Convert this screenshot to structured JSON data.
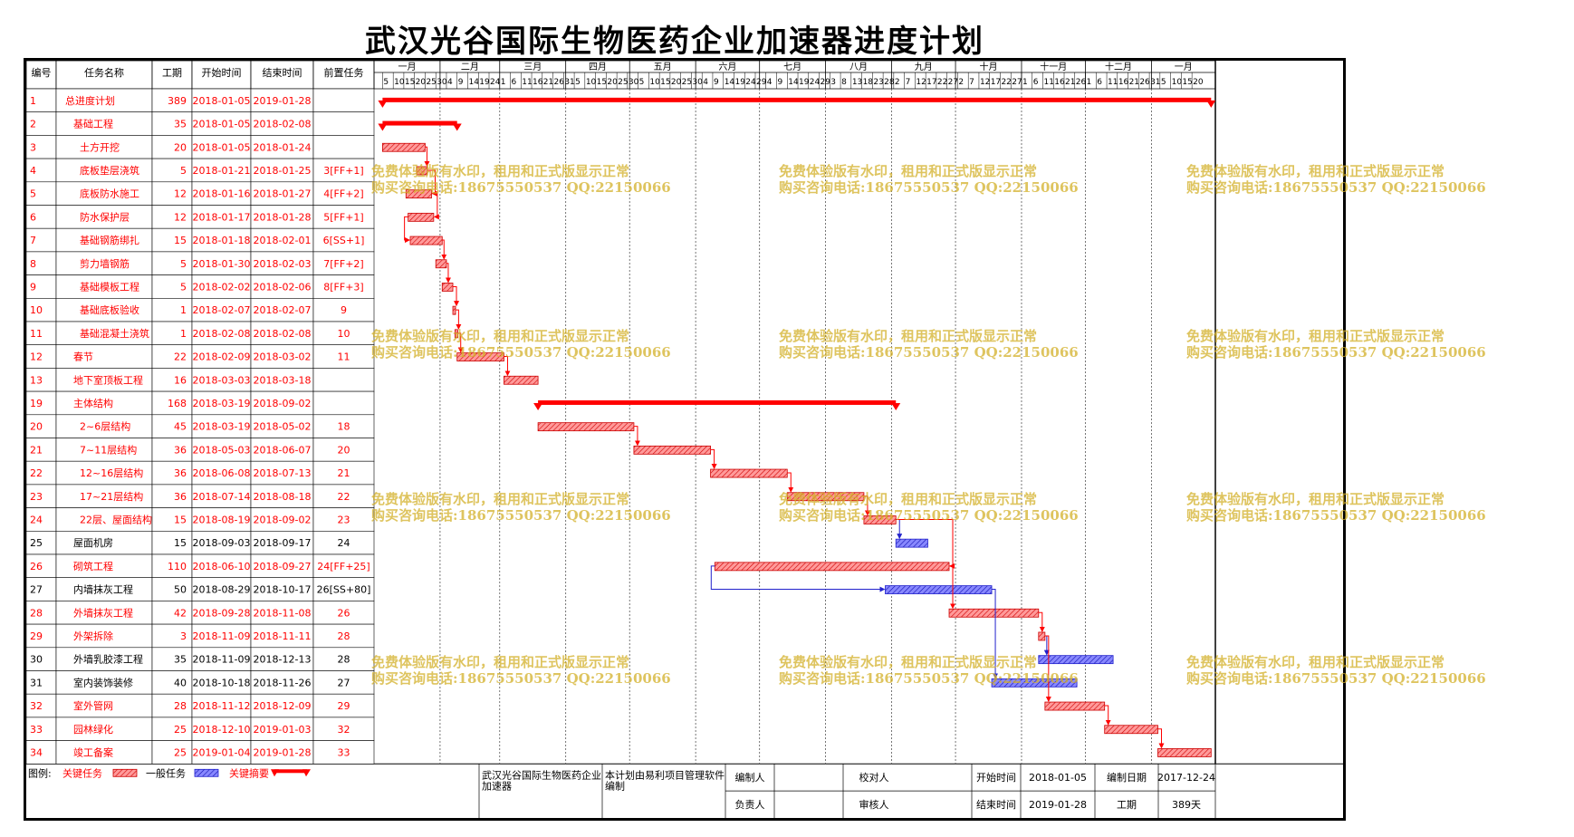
{
  "title": "武汉光谷国际生物医药企业加速器进度计划",
  "headers": [
    "编号",
    "任务名称",
    "工期",
    "开始时间",
    "结束时间",
    "前置任务"
  ],
  "months": [
    "一月",
    "二月",
    "三月",
    "四月",
    "五月",
    "六月",
    "七月",
    "八月",
    "九月",
    "十月",
    "十一月",
    "十二月",
    "一月"
  ],
  "chart_data": {
    "type": "gantt",
    "title": "武汉光谷国际生物医药企业加速器进度计划",
    "date_range": [
      "2018-01-01",
      "2019-01-31"
    ],
    "tasks": [
      {
        "id": "1",
        "name": "总进度计划",
        "duration": "389",
        "start": "2018-01-05",
        "end": "2019-01-28",
        "pred": "",
        "kind": "summary",
        "level": 0
      },
      {
        "id": "2",
        "name": "基础工程",
        "duration": "35",
        "start": "2018-01-05",
        "end": "2018-02-08",
        "pred": "",
        "kind": "summary",
        "level": 1
      },
      {
        "id": "3",
        "name": "土方开挖",
        "duration": "20",
        "start": "2018-01-05",
        "end": "2018-01-24",
        "pred": "",
        "kind": "critical",
        "level": 2
      },
      {
        "id": "4",
        "name": "底板垫层浇筑",
        "duration": "5",
        "start": "2018-01-21",
        "end": "2018-01-25",
        "pred": "3[FF+1]",
        "kind": "critical",
        "level": 2
      },
      {
        "id": "5",
        "name": "底板防水施工",
        "duration": "12",
        "start": "2018-01-16",
        "end": "2018-01-27",
        "pred": "4[FF+2]",
        "kind": "critical",
        "level": 2
      },
      {
        "id": "6",
        "name": "防水保护层",
        "duration": "12",
        "start": "2018-01-17",
        "end": "2018-01-28",
        "pred": "5[FF+1]",
        "kind": "critical",
        "level": 2
      },
      {
        "id": "7",
        "name": "基础钢筋绑扎",
        "duration": "15",
        "start": "2018-01-18",
        "end": "2018-02-01",
        "pred": "6[SS+1]",
        "kind": "critical",
        "level": 2
      },
      {
        "id": "8",
        "name": "剪力墙钢筋",
        "duration": "5",
        "start": "2018-01-30",
        "end": "2018-02-03",
        "pred": "7[FF+2]",
        "kind": "critical",
        "level": 2
      },
      {
        "id": "9",
        "name": "基础模板工程",
        "duration": "5",
        "start": "2018-02-02",
        "end": "2018-02-06",
        "pred": "8[FF+3]",
        "kind": "critical",
        "level": 2
      },
      {
        "id": "10",
        "name": "基础底板验收",
        "duration": "1",
        "start": "2018-02-07",
        "end": "2018-02-07",
        "pred": "9",
        "kind": "critical",
        "level": 2
      },
      {
        "id": "11",
        "name": "基础混凝土浇筑",
        "duration": "1",
        "start": "2018-02-08",
        "end": "2018-02-08",
        "pred": "10",
        "kind": "critical",
        "level": 2
      },
      {
        "id": "12",
        "name": "春节",
        "duration": "22",
        "start": "2018-02-09",
        "end": "2018-03-02",
        "pred": "11",
        "kind": "critical",
        "level": 1
      },
      {
        "id": "13",
        "name": "地下室顶板工程",
        "duration": "16",
        "start": "2018-03-03",
        "end": "2018-03-18",
        "pred": "",
        "kind": "critical",
        "level": 1
      },
      {
        "id": "19",
        "name": "主体结构",
        "duration": "168",
        "start": "2018-03-19",
        "end": "2018-09-02",
        "pred": "",
        "kind": "summary",
        "level": 1
      },
      {
        "id": "20",
        "name": "2~6层结构",
        "duration": "45",
        "start": "2018-03-19",
        "end": "2018-05-02",
        "pred": "18",
        "kind": "critical",
        "level": 2
      },
      {
        "id": "21",
        "name": "7~11层结构",
        "duration": "36",
        "start": "2018-05-03",
        "end": "2018-06-07",
        "pred": "20",
        "kind": "critical",
        "level": 2
      },
      {
        "id": "22",
        "name": "12~16层结构",
        "duration": "36",
        "start": "2018-06-08",
        "end": "2018-07-13",
        "pred": "21",
        "kind": "critical",
        "level": 2
      },
      {
        "id": "23",
        "name": "17~21层结构",
        "duration": "36",
        "start": "2018-07-14",
        "end": "2018-08-18",
        "pred": "22",
        "kind": "critical",
        "level": 2
      },
      {
        "id": "24",
        "name": "22层、屋面结构",
        "duration": "15",
        "start": "2018-08-19",
        "end": "2018-09-02",
        "pred": "23",
        "kind": "critical",
        "level": 2
      },
      {
        "id": "25",
        "name": "屋面机房",
        "duration": "15",
        "start": "2018-09-03",
        "end": "2018-09-17",
        "pred": "24",
        "kind": "normal",
        "level": 1
      },
      {
        "id": "26",
        "name": "砌筑工程",
        "duration": "110",
        "start": "2018-06-10",
        "end": "2018-09-27",
        "pred": "24[FF+25]",
        "kind": "critical",
        "level": 1
      },
      {
        "id": "27",
        "name": "内墙抹灰工程",
        "duration": "50",
        "start": "2018-08-29",
        "end": "2018-10-17",
        "pred": "26[SS+80]",
        "kind": "normal",
        "level": 1
      },
      {
        "id": "28",
        "name": "外墙抹灰工程",
        "duration": "42",
        "start": "2018-09-28",
        "end": "2018-11-08",
        "pred": "26",
        "kind": "critical",
        "level": 1
      },
      {
        "id": "29",
        "name": "外架拆除",
        "duration": "3",
        "start": "2018-11-09",
        "end": "2018-11-11",
        "pred": "28",
        "kind": "critical",
        "level": 1
      },
      {
        "id": "30",
        "name": "外墙乳胶漆工程",
        "duration": "35",
        "start": "2018-11-09",
        "end": "2018-12-13",
        "pred": "28",
        "kind": "normal",
        "level": 1
      },
      {
        "id": "31",
        "name": "室内装饰装修",
        "duration": "40",
        "start": "2018-10-18",
        "end": "2018-11-26",
        "pred": "27",
        "kind": "normal",
        "level": 1
      },
      {
        "id": "32",
        "name": "室外管网",
        "duration": "28",
        "start": "2018-11-12",
        "end": "2018-12-09",
        "pred": "29",
        "kind": "critical",
        "level": 1
      },
      {
        "id": "33",
        "name": "园林绿化",
        "duration": "25",
        "start": "2018-12-10",
        "end": "2019-01-03",
        "pred": "32",
        "kind": "critical",
        "level": 1
      },
      {
        "id": "34",
        "name": "竣工备案",
        "duration": "25",
        "start": "2019-01-04",
        "end": "2019-01-28",
        "pred": "33",
        "kind": "critical",
        "level": 1
      }
    ]
  },
  "legend": {
    "label": "图例:",
    "critical": "关键任务",
    "normal": "一般任务",
    "summary": "关键摘要"
  },
  "footer": {
    "project": "武汉光谷国际生物医药企业加速器",
    "note": "本计划由易利项目管理软件编制",
    "editor_label": "编制人",
    "checker_label": "校对人",
    "owner_label": "负责人",
    "reviewer_label": "审核人",
    "start_label": "开始时间",
    "start_value": "2018-01-05",
    "end_label": "结束时间",
    "end_value": "2019-01-28",
    "date_label": "编制日期",
    "date_value": "2017-12-24",
    "duration_label": "工期",
    "duration_value": "389天"
  },
  "watermark": {
    "line1": "免费体验版有水印，租用和正式版显示正常",
    "line2": "购买咨询电话:18675550537 QQ:22150066"
  },
  "colors": {
    "critical": "#ff0000",
    "normal": "#2222cc",
    "grid": "#000000",
    "task_text": "#ff0000",
    "normal_text": "#000000",
    "watermark": "#d4b12a"
  }
}
